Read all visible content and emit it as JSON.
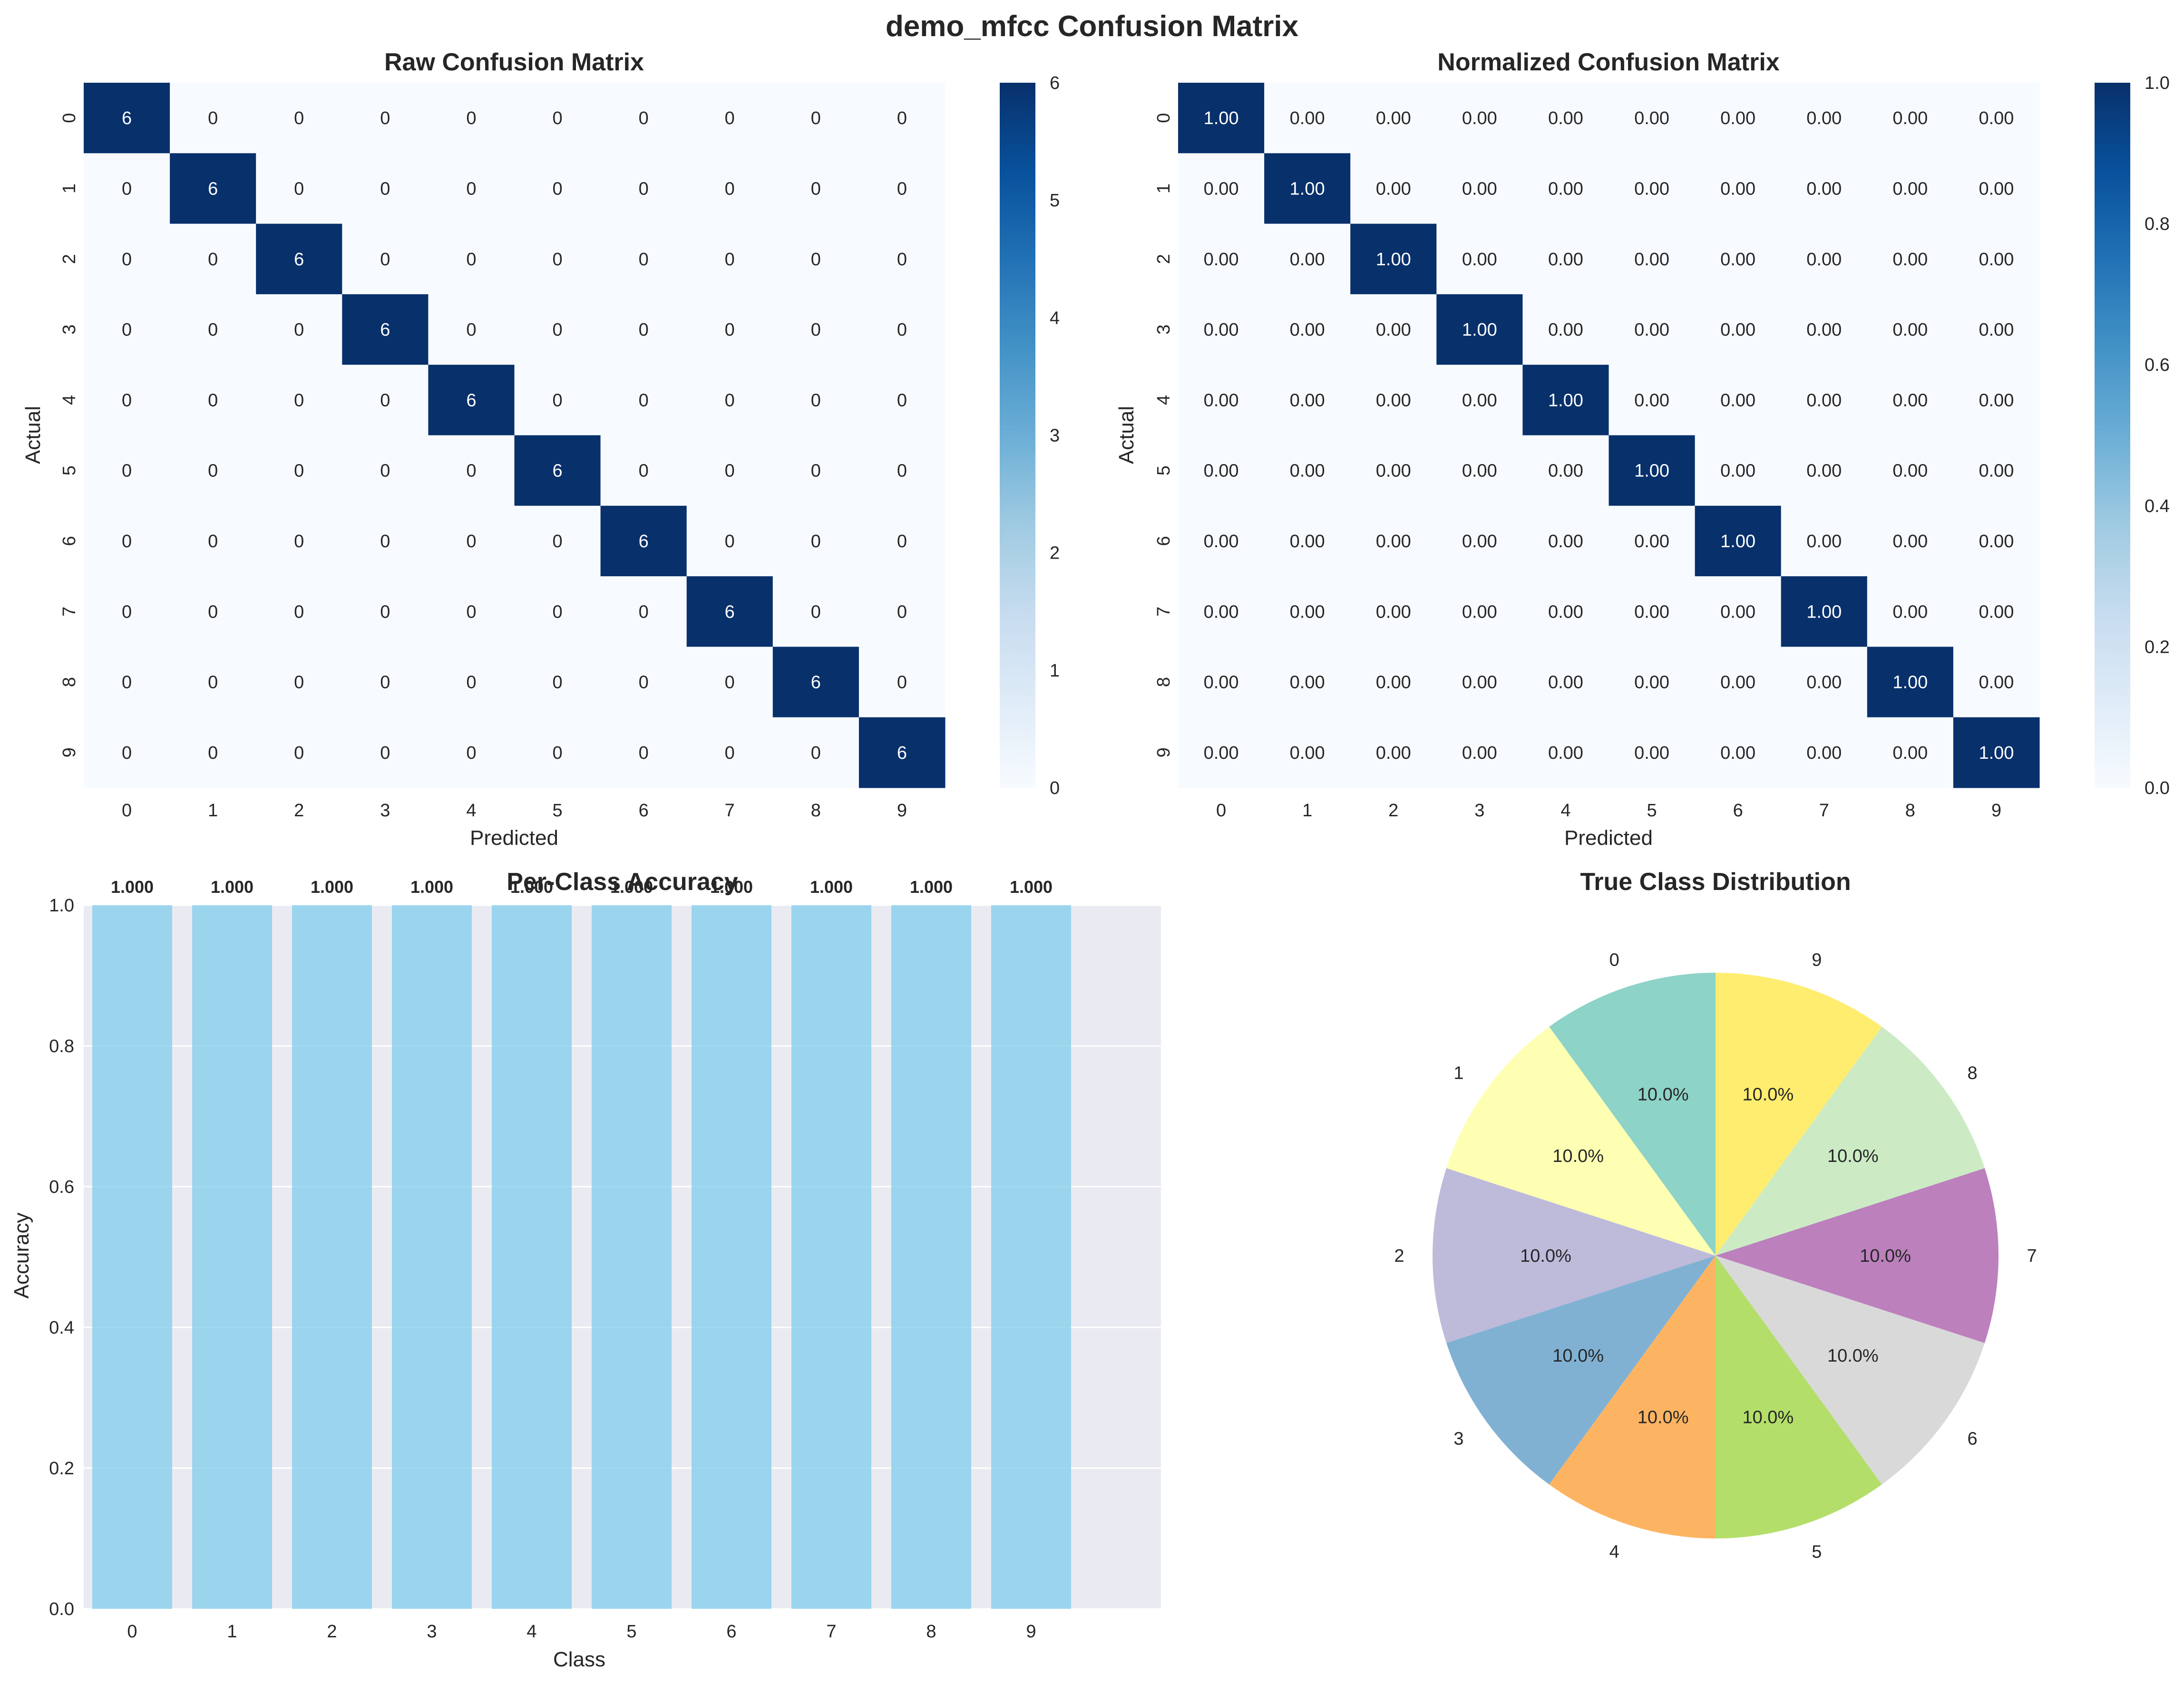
{
  "figure": {
    "title": "demo_mfcc Confusion Matrix"
  },
  "chart_data": [
    {
      "type": "heatmap",
      "title": "Raw Confusion Matrix",
      "xlabel": "Predicted",
      "ylabel": "Actual",
      "x_categories": [
        "0",
        "1",
        "2",
        "3",
        "4",
        "5",
        "6",
        "7",
        "8",
        "9"
      ],
      "y_categories": [
        "0",
        "1",
        "2",
        "3",
        "4",
        "5",
        "6",
        "7",
        "8",
        "9"
      ],
      "values": [
        [
          6,
          0,
          0,
          0,
          0,
          0,
          0,
          0,
          0,
          0
        ],
        [
          0,
          6,
          0,
          0,
          0,
          0,
          0,
          0,
          0,
          0
        ],
        [
          0,
          0,
          6,
          0,
          0,
          0,
          0,
          0,
          0,
          0
        ],
        [
          0,
          0,
          0,
          6,
          0,
          0,
          0,
          0,
          0,
          0
        ],
        [
          0,
          0,
          0,
          0,
          6,
          0,
          0,
          0,
          0,
          0
        ],
        [
          0,
          0,
          0,
          0,
          0,
          6,
          0,
          0,
          0,
          0
        ],
        [
          0,
          0,
          0,
          0,
          0,
          0,
          6,
          0,
          0,
          0
        ],
        [
          0,
          0,
          0,
          0,
          0,
          0,
          0,
          6,
          0,
          0
        ],
        [
          0,
          0,
          0,
          0,
          0,
          0,
          0,
          0,
          6,
          0
        ],
        [
          0,
          0,
          0,
          0,
          0,
          0,
          0,
          0,
          0,
          6
        ]
      ],
      "value_format": "int",
      "colormap": "Blues",
      "colorbar": {
        "min": 0,
        "max": 6,
        "ticks": [
          "0",
          "1",
          "2",
          "3",
          "4",
          "5",
          "6"
        ]
      }
    },
    {
      "type": "heatmap",
      "title": "Normalized Confusion Matrix",
      "xlabel": "Predicted",
      "ylabel": "Actual",
      "x_categories": [
        "0",
        "1",
        "2",
        "3",
        "4",
        "5",
        "6",
        "7",
        "8",
        "9"
      ],
      "y_categories": [
        "0",
        "1",
        "2",
        "3",
        "4",
        "5",
        "6",
        "7",
        "8",
        "9"
      ],
      "values": [
        [
          1,
          0,
          0,
          0,
          0,
          0,
          0,
          0,
          0,
          0
        ],
        [
          0,
          1,
          0,
          0,
          0,
          0,
          0,
          0,
          0,
          0
        ],
        [
          0,
          0,
          1,
          0,
          0,
          0,
          0,
          0,
          0,
          0
        ],
        [
          0,
          0,
          0,
          1,
          0,
          0,
          0,
          0,
          0,
          0
        ],
        [
          0,
          0,
          0,
          0,
          1,
          0,
          0,
          0,
          0,
          0
        ],
        [
          0,
          0,
          0,
          0,
          0,
          1,
          0,
          0,
          0,
          0
        ],
        [
          0,
          0,
          0,
          0,
          0,
          0,
          1,
          0,
          0,
          0
        ],
        [
          0,
          0,
          0,
          0,
          0,
          0,
          0,
          1,
          0,
          0
        ],
        [
          0,
          0,
          0,
          0,
          0,
          0,
          0,
          0,
          1,
          0
        ],
        [
          0,
          0,
          0,
          0,
          0,
          0,
          0,
          0,
          0,
          1
        ]
      ],
      "value_format": "2f",
      "colormap": "Blues",
      "colorbar": {
        "min": 0,
        "max": 1,
        "ticks": [
          "0.0",
          "0.2",
          "0.4",
          "0.6",
          "0.8",
          "1.0"
        ]
      }
    },
    {
      "type": "bar",
      "title": "Per-Class Accuracy",
      "xlabel": "Class",
      "ylabel": "Accuracy",
      "categories": [
        "0",
        "1",
        "2",
        "3",
        "4",
        "5",
        "6",
        "7",
        "8",
        "9"
      ],
      "values": [
        1.0,
        1.0,
        1.0,
        1.0,
        1.0,
        1.0,
        1.0,
        1.0,
        1.0,
        1.0
      ],
      "data_labels": [
        "1.000",
        "1.000",
        "1.000",
        "1.000",
        "1.000",
        "1.000",
        "1.000",
        "1.000",
        "1.000",
        "1.000"
      ],
      "ylim": [
        0,
        1
      ],
      "yticks": [
        "0.0",
        "0.2",
        "0.4",
        "0.6",
        "0.8",
        "1.0"
      ],
      "grid": true,
      "bar_color": "#87ceeb",
      "background": "#eaeaf2"
    },
    {
      "type": "pie",
      "title": "True Class Distribution",
      "labels": [
        "0",
        "1",
        "2",
        "3",
        "4",
        "5",
        "6",
        "7",
        "8",
        "9"
      ],
      "values": [
        10,
        10,
        10,
        10,
        10,
        10,
        10,
        10,
        10,
        10
      ],
      "pct_labels": [
        "10.0%",
        "10.0%",
        "10.0%",
        "10.0%",
        "10.0%",
        "10.0%",
        "10.0%",
        "10.0%",
        "10.0%",
        "10.0%"
      ],
      "colors": [
        "#8dd3c7",
        "#ffffb3",
        "#bebada",
        "#80b1d3",
        "#fdb462",
        "#b3de69",
        "#d9d9d9",
        "#bc80bd",
        "#ccebc5",
        "#ffed6f"
      ]
    }
  ]
}
